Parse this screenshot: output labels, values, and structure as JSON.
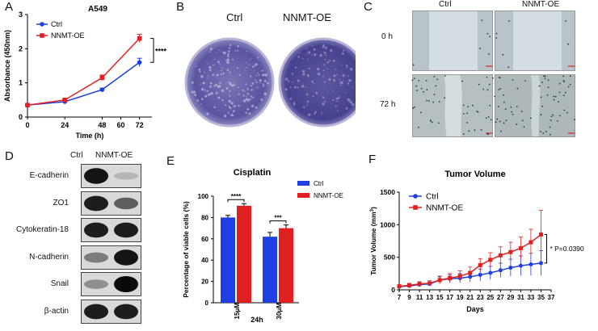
{
  "panelA": {
    "label": "A",
    "chart_data": {
      "type": "line",
      "title": "A549",
      "xlabel": "Time (h)",
      "ylabel": "Absorbance (450nm)",
      "x": [
        0,
        24,
        48,
        72
      ],
      "xticks": [
        0,
        24,
        48,
        60,
        72
      ],
      "xlim": [
        0,
        80
      ],
      "ylim": [
        0,
        3
      ],
      "yticks": [
        0,
        1,
        2,
        3
      ],
      "series": [
        {
          "name": "Ctrl",
          "color": "#1f3fe0",
          "values": [
            0.35,
            0.45,
            0.8,
            1.6
          ],
          "err": [
            0.02,
            0.03,
            0.05,
            0.12
          ]
        },
        {
          "name": "NNMT-OE",
          "color": "#e02020",
          "values": [
            0.35,
            0.5,
            1.15,
            2.3
          ],
          "err": [
            0.02,
            0.03,
            0.08,
            0.12
          ]
        }
      ],
      "annotation": "****"
    }
  },
  "panelB": {
    "label": "B",
    "ctrl": "Ctrl",
    "oe": "NNMT-OE"
  },
  "panelC": {
    "label": "C",
    "ctrl": "Ctrl",
    "oe": "NNMT-OE",
    "row1": "0 h",
    "row2": "72 h"
  },
  "panelD": {
    "label": "D",
    "ctrl": "Ctrl",
    "oe": "NNMT-OE",
    "proteins": [
      "E-cadherin",
      "ZO1",
      "Cytokeratin-18",
      "N-cadherin",
      "Snail",
      "β-actin"
    ]
  },
  "panelE": {
    "label": "E",
    "chart_data": {
      "type": "bar",
      "title": "Cisplatin",
      "ylabel": "Percentage of viable cells (%)",
      "xlabel": "24h",
      "categories": [
        "15μM",
        "30μM"
      ],
      "ylim": [
        0,
        100
      ],
      "yticks": [
        0,
        20,
        40,
        60,
        80,
        100
      ],
      "series": [
        {
          "name": "Ctrl",
          "color": "#1f3fe0",
          "values": [
            80,
            62
          ],
          "err": [
            2,
            4
          ]
        },
        {
          "name": "NNMT-OE",
          "color": "#e02020",
          "values": [
            91,
            70
          ],
          "err": [
            2,
            3
          ]
        }
      ],
      "annotations": [
        "****",
        "***"
      ]
    }
  },
  "panelF": {
    "label": "F",
    "chart_data": {
      "type": "line",
      "title": "Tumor Volume",
      "xlabel": "Days",
      "ylabel": "Tumor Volume (mm",
      "ylabel_sup": "3",
      "ylabel_end": ")",
      "xticks": [
        7,
        9,
        11,
        13,
        15,
        17,
        19,
        21,
        23,
        25,
        27,
        29,
        31,
        33,
        35,
        37
      ],
      "xlim": [
        7,
        37
      ],
      "ylim": [
        0,
        1500
      ],
      "yticks": [
        0,
        500,
        1000,
        1500
      ],
      "x": [
        7,
        9,
        11,
        13,
        15,
        17,
        19,
        21,
        23,
        25,
        27,
        29,
        31,
        33,
        35
      ],
      "series": [
        {
          "name": "Ctrl",
          "color": "#1f3fe0",
          "values": [
            50,
            60,
            80,
            90,
            150,
            170,
            180,
            200,
            230,
            260,
            300,
            340,
            370,
            390,
            410
          ],
          "err": [
            20,
            25,
            30,
            30,
            50,
            60,
            70,
            80,
            90,
            100,
            110,
            130,
            150,
            170,
            190
          ]
        },
        {
          "name": "NNMT-OE",
          "color": "#e02020",
          "values": [
            55,
            70,
            90,
            100,
            150,
            180,
            210,
            260,
            380,
            460,
            530,
            580,
            640,
            730,
            850
          ],
          "err": [
            20,
            30,
            35,
            40,
            60,
            70,
            80,
            90,
            100,
            110,
            130,
            150,
            170,
            200,
            370
          ]
        }
      ],
      "annotation": "* P=0.0390"
    }
  }
}
